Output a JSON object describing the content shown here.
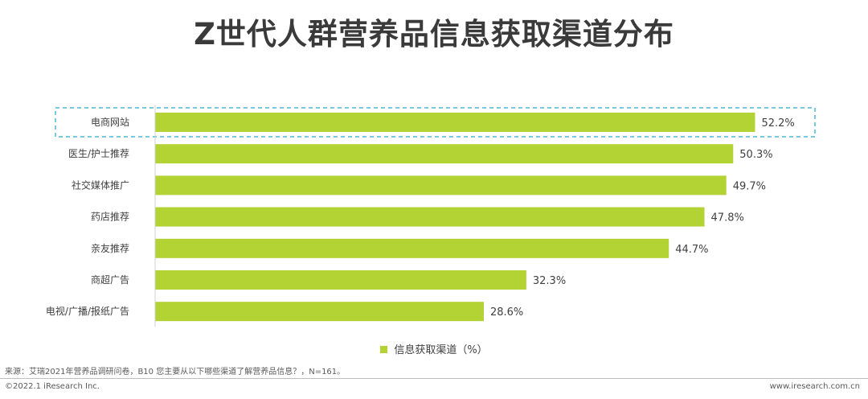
{
  "title": "Z世代人群营养品信息获取渠道分布",
  "chart_data": {
    "type": "bar",
    "orientation": "horizontal",
    "categories": [
      "电商网站",
      "医生/护士推荐",
      "社交媒体推广",
      "药店推荐",
      "亲友推荐",
      "商超广告",
      "电视/广播/报纸广告"
    ],
    "series": [
      {
        "name": "信息获取渠道（%）",
        "values": [
          52.2,
          50.3,
          49.7,
          47.8,
          44.7,
          32.3,
          28.6
        ]
      }
    ],
    "value_labels": [
      "52.2%",
      "50.3%",
      "49.7%",
      "47.8%",
      "44.7%",
      "32.3%",
      "28.6%"
    ],
    "xlim": [
      0,
      55
    ],
    "grid": false,
    "legend_position": "bottom",
    "bar_color": "#b3d234",
    "highlight_color": "#4bb8d6",
    "highlighted_category": "电商网站"
  },
  "legend_label": "信息获取渠道（%）",
  "source": "来源：艾瑞2021年营养品调研问卷，B10 您主要从以下哪些渠道了解营养品信息？，N=161。",
  "footer": {
    "copyright": "©2022.1 iResearch Inc.",
    "website": "www.iresearch.com.cn"
  }
}
